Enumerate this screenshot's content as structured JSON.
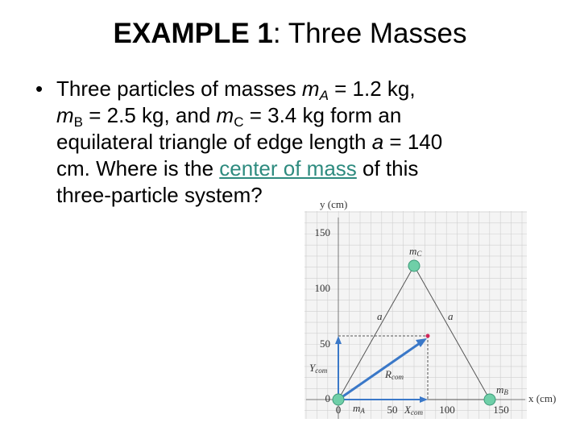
{
  "title": {
    "bold": "EXAMPLE 1",
    "rest": ": Three Masses"
  },
  "bullet": {
    "lines": [
      [
        "Three particles of masses ",
        "m",
        "A",
        " = 1.2 kg,"
      ],
      [
        "m",
        "B",
        " = 2.5 kg, and ",
        "m",
        "C",
        " = 3.4 kg form an"
      ],
      [
        "equilateral triangle of edge length ",
        "a",
        " = 140"
      ],
      [
        "cm. Where is the ",
        "center of mass",
        " of this"
      ],
      [
        "three-particle system?"
      ]
    ]
  },
  "figure": {
    "y_axis_label": "y (cm)",
    "x_axis_label": "x (cm)",
    "x_ticks": [
      "0",
      "50",
      "100",
      "150"
    ],
    "y_ticks": [
      "0",
      "50",
      "100",
      "150"
    ],
    "mass_a": [
      "m",
      "A"
    ],
    "mass_b": [
      "m",
      "B"
    ],
    "mass_c": [
      "m",
      "C"
    ],
    "edge_label": "a",
    "y_com": [
      "Y",
      "com"
    ],
    "x_com": [
      "X",
      "com"
    ],
    "r_com": [
      "R",
      "com"
    ]
  }
}
